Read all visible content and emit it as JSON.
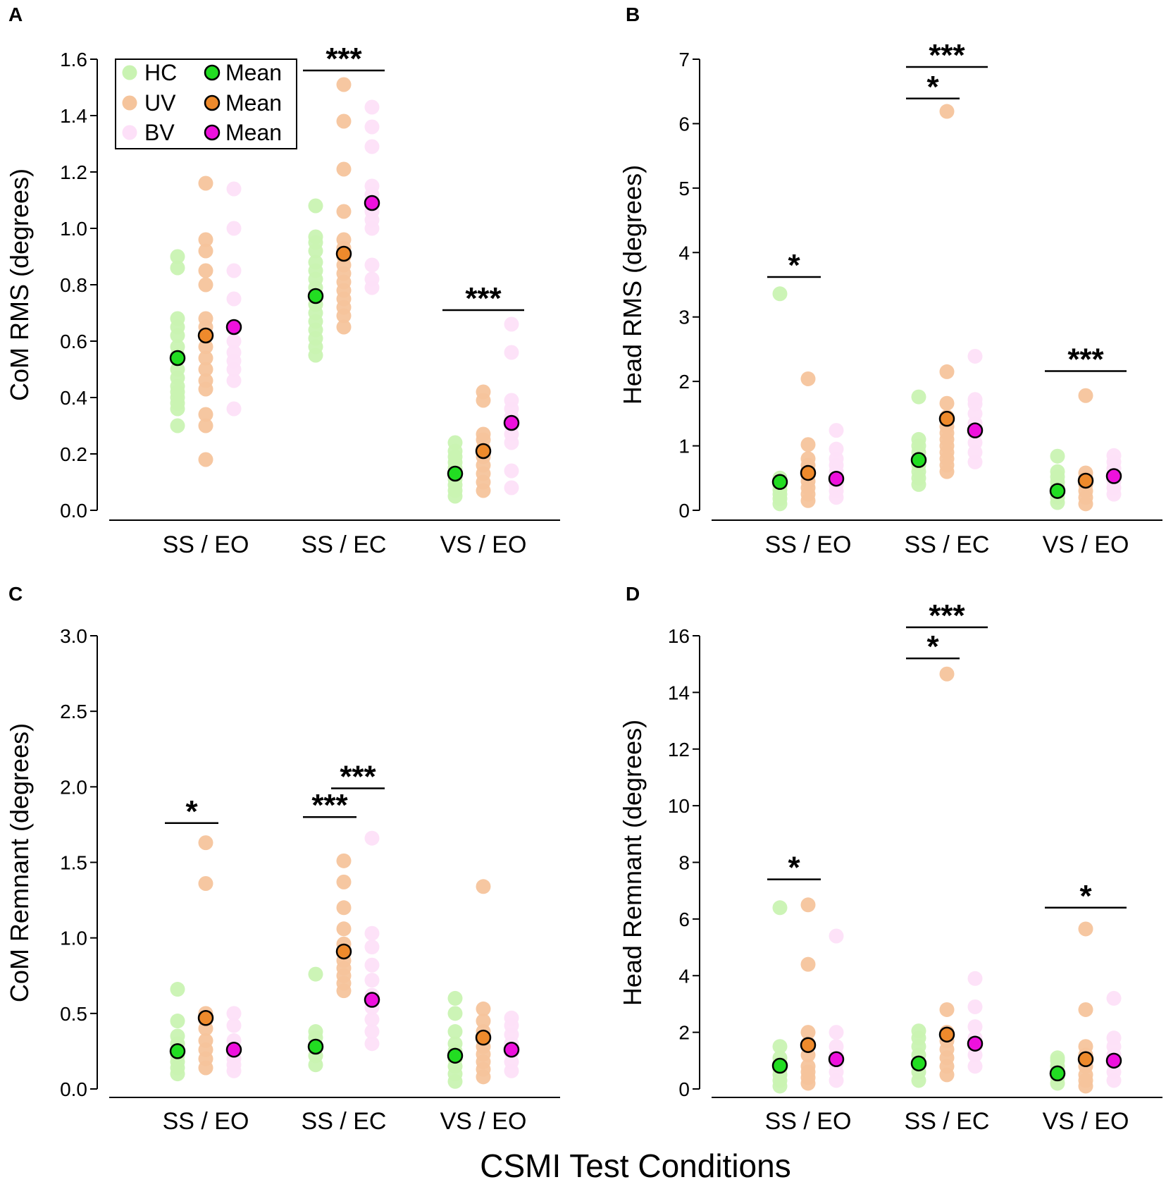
{
  "colors": {
    "HC": "#c9f3b2",
    "UV": "#f5c49c",
    "BV": "#fde0f8",
    "HC_mean": "#22dd22",
    "UV_mean": "#ee8a2c",
    "BV_mean": "#ee11dd"
  },
  "xtitle": "CSMI Test Conditions",
  "legend": {
    "HC": "HC",
    "UV": "UV",
    "BV": "BV",
    "mean": "Mean"
  },
  "chart_data": [
    {
      "panel": "A",
      "type": "scatter",
      "ylabel": "CoM RMS (degrees)",
      "ylim": [
        0,
        1.6
      ],
      "yticks": [
        0.0,
        0.2,
        0.4,
        0.6,
        0.8,
        1.0,
        1.2,
        1.4,
        1.6
      ],
      "ytick_labels": [
        "0.0",
        "0.2",
        "0.4",
        "0.6",
        "0.8",
        "1.0",
        "1.2",
        "1.4",
        "1.6"
      ],
      "categories": [
        "SS / EO",
        "SS / EC",
        "VS / EO"
      ],
      "legend": true,
      "groups": {
        "HC": [
          [
            0.3,
            0.36,
            0.38,
            0.4,
            0.42,
            0.44,
            0.47,
            0.5,
            0.55,
            0.58,
            0.62,
            0.65,
            0.68,
            0.86,
            0.9
          ],
          [
            0.55,
            0.58,
            0.61,
            0.64,
            0.67,
            0.7,
            0.73,
            0.76,
            0.79,
            0.82,
            0.85,
            0.88,
            0.92,
            0.95,
            0.97,
            1.08
          ],
          [
            0.05,
            0.07,
            0.09,
            0.11,
            0.13,
            0.15,
            0.17,
            0.19,
            0.21,
            0.24
          ]
        ],
        "UV": [
          [
            0.18,
            0.3,
            0.34,
            0.43,
            0.46,
            0.5,
            0.54,
            0.58,
            0.62,
            0.65,
            0.68,
            0.8,
            0.85,
            0.92,
            0.96,
            1.16
          ],
          [
            0.65,
            0.69,
            0.72,
            0.75,
            0.78,
            0.81,
            0.84,
            0.87,
            0.9,
            0.93,
            0.96,
            1.06,
            1.21,
            1.38,
            1.51
          ],
          [
            0.07,
            0.1,
            0.13,
            0.16,
            0.19,
            0.22,
            0.25,
            0.27,
            0.39,
            0.42
          ]
        ],
        "BV": [
          [
            0.36,
            0.46,
            0.5,
            0.53,
            0.56,
            0.6,
            0.65,
            0.75,
            0.85,
            1.0,
            1.14
          ],
          [
            0.79,
            0.82,
            0.87,
            1.0,
            1.03,
            1.06,
            1.09,
            1.12,
            1.15,
            1.29,
            1.36,
            1.43
          ],
          [
            0.08,
            0.14,
            0.24,
            0.27,
            0.3,
            0.33,
            0.36,
            0.39,
            0.56,
            0.66
          ]
        ]
      },
      "means": {
        "HC": [
          0.54,
          0.76,
          0.13
        ],
        "UV": [
          0.62,
          0.91,
          0.21
        ],
        "BV": [
          0.65,
          1.09,
          0.31
        ]
      },
      "annotations": [
        {
          "label": "***",
          "category": 1,
          "from": "HC",
          "to": "BV",
          "y": 1.56
        },
        {
          "label": "***",
          "category": 2,
          "from": "HC",
          "to": "BV",
          "y": 0.71
        }
      ]
    },
    {
      "panel": "B",
      "type": "scatter",
      "ylabel": "Head RMS (degrees)",
      "ylim": [
        0,
        7
      ],
      "yticks": [
        0,
        1,
        2,
        3,
        4,
        5,
        6,
        7
      ],
      "ytick_labels": [
        "0",
        "1",
        "2",
        "3",
        "4",
        "5",
        "6",
        "7"
      ],
      "categories": [
        "SS / EO",
        "SS / EC",
        "VS / EO"
      ],
      "legend": false,
      "groups": {
        "HC": [
          [
            0.1,
            0.18,
            0.25,
            0.32,
            0.38,
            0.44,
            0.5,
            3.36
          ],
          [
            0.4,
            0.5,
            0.6,
            0.7,
            0.8,
            0.9,
            1.0,
            1.1,
            1.76
          ],
          [
            0.12,
            0.2,
            0.28,
            0.36,
            0.44,
            0.52,
            0.6,
            0.84
          ]
        ],
        "UV": [
          [
            0.15,
            0.25,
            0.35,
            0.45,
            0.55,
            0.62,
            0.7,
            0.8,
            1.02,
            2.04
          ],
          [
            0.6,
            0.7,
            0.8,
            0.9,
            1.0,
            1.1,
            1.2,
            1.3,
            1.45,
            1.66,
            2.15,
            6.19
          ],
          [
            0.1,
            0.2,
            0.3,
            0.4,
            0.5,
            0.58,
            1.78
          ]
        ],
        "BV": [
          [
            0.2,
            0.3,
            0.4,
            0.5,
            0.6,
            0.7,
            0.8,
            0.95,
            1.24
          ],
          [
            0.75,
            0.9,
            1.05,
            1.2,
            1.35,
            1.5,
            1.65,
            1.72,
            2.39
          ],
          [
            0.25,
            0.35,
            0.45,
            0.55,
            0.65,
            0.75,
            0.85
          ]
        ]
      },
      "means": {
        "HC": [
          0.44,
          0.78,
          0.3
        ],
        "UV": [
          0.58,
          1.42,
          0.46
        ],
        "BV": [
          0.49,
          1.24,
          0.53
        ]
      },
      "annotations": [
        {
          "label": "*",
          "category": 0,
          "from": "HC",
          "to": "UV",
          "y": 3.62
        },
        {
          "label": "***",
          "category": 1,
          "from": "HC",
          "to": "BV",
          "y": 6.88
        },
        {
          "label": "*",
          "category": 1,
          "from": "HC",
          "to": "UV",
          "y": 6.39
        },
        {
          "label": "***",
          "category": 2,
          "from": "HC",
          "to": "BV",
          "y": 2.16
        }
      ]
    },
    {
      "panel": "C",
      "type": "scatter",
      "ylabel": "CoM Remnant (degrees)",
      "ylim": [
        0,
        3.0
      ],
      "yticks": [
        0.0,
        0.5,
        1.0,
        1.5,
        2.0,
        2.5,
        3.0
      ],
      "ytick_labels": [
        "0.0",
        "0.5",
        "1.0",
        "1.5",
        "2.0",
        "2.5",
        "3.0"
      ],
      "categories": [
        "SS / EO",
        "SS / EC",
        "VS / EO"
      ],
      "legend": false,
      "groups": {
        "HC": [
          [
            0.1,
            0.14,
            0.18,
            0.22,
            0.26,
            0.3,
            0.35,
            0.45,
            0.66
          ],
          [
            0.16,
            0.22,
            0.28,
            0.34,
            0.38,
            0.76
          ],
          [
            0.05,
            0.1,
            0.15,
            0.2,
            0.25,
            0.3,
            0.38,
            0.5,
            0.6
          ]
        ],
        "UV": [
          [
            0.14,
            0.2,
            0.26,
            0.32,
            0.4,
            0.46,
            0.5,
            1.36,
            1.63
          ],
          [
            0.65,
            0.7,
            0.75,
            0.8,
            0.85,
            0.9,
            0.96,
            1.06,
            1.2,
            1.37,
            1.51
          ],
          [
            0.08,
            0.13,
            0.18,
            0.23,
            0.28,
            0.33,
            0.38,
            0.45,
            0.53,
            1.34
          ]
        ],
        "BV": [
          [
            0.12,
            0.16,
            0.2,
            0.26,
            0.32,
            0.42,
            0.5
          ],
          [
            0.3,
            0.38,
            0.46,
            0.54,
            0.62,
            0.72,
            0.82,
            0.94,
            1.03,
            1.66
          ],
          [
            0.12,
            0.18,
            0.24,
            0.3,
            0.36,
            0.42,
            0.47
          ]
        ]
      },
      "means": {
        "HC": [
          0.25,
          0.28,
          0.22
        ],
        "UV": [
          0.47,
          0.91,
          0.34
        ],
        "BV": [
          0.26,
          0.59,
          0.26
        ]
      },
      "annotations": [
        {
          "label": "*",
          "category": 0,
          "from": "HC",
          "to": "UV",
          "y": 1.76
        },
        {
          "label": "***",
          "category": 1,
          "from": "UV",
          "to": "BV",
          "y": 1.99
        },
        {
          "label": "***",
          "category": 1,
          "from": "HC",
          "to": "UV",
          "y": 1.8
        }
      ]
    },
    {
      "panel": "D",
      "type": "scatter",
      "ylabel": "Head Remnant (degrees)",
      "ylim": [
        0,
        16
      ],
      "yticks": [
        0,
        2,
        4,
        6,
        8,
        10,
        12,
        14,
        16
      ],
      "ytick_labels": [
        "0",
        "2",
        "4",
        "6",
        "8",
        "10",
        "12",
        "14",
        "16"
      ],
      "categories": [
        "SS / EO",
        "SS / EC",
        "VS / EO"
      ],
      "legend": false,
      "groups": {
        "HC": [
          [
            0.1,
            0.3,
            0.5,
            0.7,
            0.9,
            1.1,
            1.5,
            6.4
          ],
          [
            0.3,
            0.6,
            0.9,
            1.2,
            1.5,
            1.8,
            2.05
          ],
          [
            0.2,
            0.4,
            0.6,
            0.8,
            1.0,
            1.1
          ]
        ],
        "UV": [
          [
            0.2,
            0.4,
            0.6,
            0.8,
            1.2,
            1.6,
            2.0,
            4.4,
            6.5
          ],
          [
            0.5,
            0.8,
            1.1,
            1.4,
            1.7,
            2.0,
            2.8,
            14.65
          ],
          [
            0.1,
            0.3,
            0.5,
            0.8,
            1.2,
            1.5,
            2.8,
            5.65
          ]
        ],
        "BV": [
          [
            0.3,
            0.6,
            0.9,
            1.2,
            1.5,
            2.0,
            5.4
          ],
          [
            0.8,
            1.2,
            1.5,
            1.8,
            2.2,
            2.9,
            3.9
          ],
          [
            0.3,
            0.6,
            0.9,
            1.2,
            1.5,
            1.8,
            3.2
          ]
        ]
      },
      "means": {
        "HC": [
          0.82,
          0.9,
          0.55
        ],
        "UV": [
          1.55,
          1.92,
          1.05
        ],
        "BV": [
          1.05,
          1.6,
          1.0
        ]
      },
      "annotations": [
        {
          "label": "*",
          "category": 0,
          "from": "HC",
          "to": "UV",
          "y": 7.4
        },
        {
          "label": "***",
          "category": 1,
          "from": "HC",
          "to": "BV",
          "y": 16.3
        },
        {
          "label": "*",
          "category": 1,
          "from": "HC",
          "to": "UV",
          "y": 15.2
        },
        {
          "label": "*",
          "category": 2,
          "from": "HC",
          "to": "BV",
          "y": 6.4
        }
      ]
    }
  ]
}
